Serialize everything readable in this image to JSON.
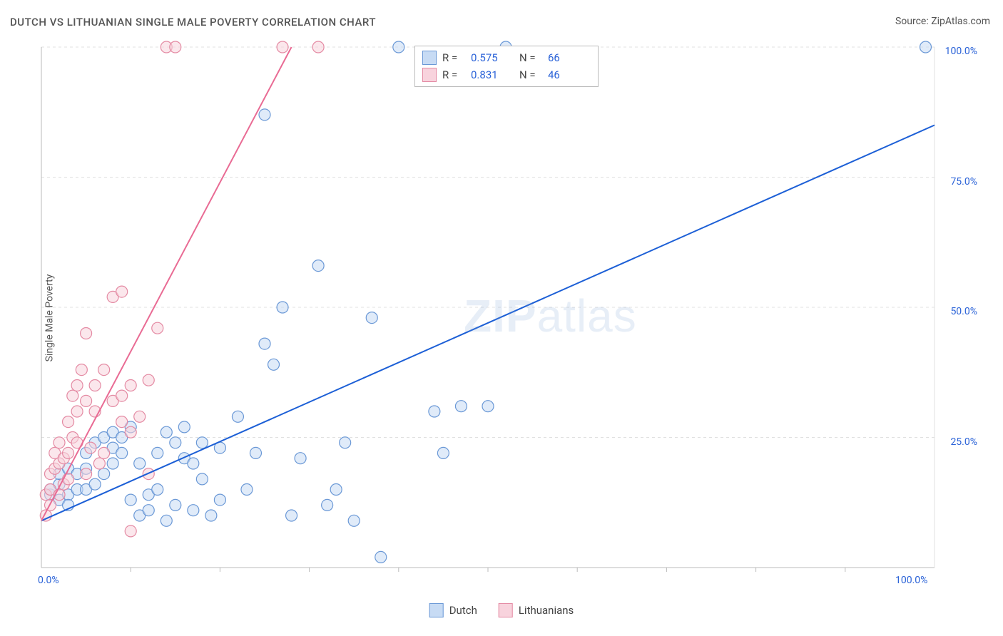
{
  "meta": {
    "title": "DUTCH VS LITHUANIAN SINGLE MALE POVERTY CORRELATION CHART",
    "source_label": "Source: ",
    "source_name": "ZipAtlas.com",
    "y_axis_label": "Single Male Poverty",
    "watermark": "ZIPatlas"
  },
  "colors": {
    "background": "#ffffff",
    "grid": "#e0e0e0",
    "axis": "#bbbbbb",
    "text": "#555555",
    "tick_text": "#2b63d8",
    "dutch_stroke": "#6a98d6",
    "dutch_fill": "#c7dbf4",
    "dutch_line": "#1c5fd6",
    "lith_stroke": "#e48aa3",
    "lith_fill": "#f8d3dd",
    "lith_line": "#e96b94"
  },
  "axes": {
    "xlim": [
      0,
      100
    ],
    "ylim": [
      0,
      100
    ],
    "x_ticks": [
      {
        "v": 0,
        "label": "0.0%"
      },
      {
        "v": 100,
        "label": "100.0%"
      }
    ],
    "x_minor_lines": [
      10,
      20,
      30,
      40,
      50,
      60,
      70,
      80,
      90
    ],
    "y_ticks": [
      {
        "v": 25,
        "label": "25.0%"
      },
      {
        "v": 50,
        "label": "50.0%"
      },
      {
        "v": 75,
        "label": "75.0%"
      },
      {
        "v": 100,
        "label": "100.0%"
      }
    ]
  },
  "legend_stats": {
    "rows": [
      {
        "color_key": "dutch",
        "r_label": "R =",
        "r": "0.575",
        "n_label": "N =",
        "n": "66"
      },
      {
        "color_key": "lith",
        "r_label": "R =",
        "r": "0.831",
        "n_label": "N =",
        "n": "46"
      }
    ]
  },
  "legend_series": {
    "items": [
      {
        "color_key": "dutch",
        "label": "Dutch"
      },
      {
        "color_key": "lith",
        "label": "Lithuanians"
      }
    ]
  },
  "chart": {
    "type": "scatter",
    "marker_radius": 8,
    "marker_stroke_width": 1.2,
    "trend_line_width": 2,
    "series": [
      {
        "name": "Dutch",
        "color_key": "dutch",
        "trend": {
          "x1": 0,
          "y1": 9,
          "x2": 100,
          "y2": 85
        },
        "points": [
          [
            1,
            14
          ],
          [
            1,
            15
          ],
          [
            2,
            13
          ],
          [
            2,
            16
          ],
          [
            2,
            18
          ],
          [
            3,
            14
          ],
          [
            3,
            19
          ],
          [
            3,
            12
          ],
          [
            4,
            15
          ],
          [
            4,
            18
          ],
          [
            5,
            15
          ],
          [
            5,
            19
          ],
          [
            5,
            22
          ],
          [
            6,
            16
          ],
          [
            6,
            24
          ],
          [
            7,
            18
          ],
          [
            7,
            25
          ],
          [
            8,
            20
          ],
          [
            8,
            23
          ],
          [
            8,
            26
          ],
          [
            9,
            22
          ],
          [
            9,
            25
          ],
          [
            10,
            27
          ],
          [
            10,
            13
          ],
          [
            11,
            10
          ],
          [
            11,
            20
          ],
          [
            12,
            14
          ],
          [
            12,
            11
          ],
          [
            13,
            22
          ],
          [
            13,
            15
          ],
          [
            14,
            26
          ],
          [
            14,
            9
          ],
          [
            15,
            24
          ],
          [
            15,
            12
          ],
          [
            16,
            21
          ],
          [
            16,
            27
          ],
          [
            17,
            20
          ],
          [
            17,
            11
          ],
          [
            18,
            17
          ],
          [
            18,
            24
          ],
          [
            19,
            10
          ],
          [
            20,
            23
          ],
          [
            20,
            13
          ],
          [
            22,
            29
          ],
          [
            23,
            15
          ],
          [
            24,
            22
          ],
          [
            25,
            43
          ],
          [
            25,
            87
          ],
          [
            26,
            39
          ],
          [
            27,
            50
          ],
          [
            28,
            10
          ],
          [
            29,
            21
          ],
          [
            31,
            58
          ],
          [
            32,
            12
          ],
          [
            33,
            15
          ],
          [
            34,
            24
          ],
          [
            35,
            9
          ],
          [
            37,
            48
          ],
          [
            38,
            2
          ],
          [
            44,
            30
          ],
          [
            45,
            22
          ],
          [
            47,
            31
          ],
          [
            50,
            31
          ],
          [
            52,
            100
          ],
          [
            40,
            100
          ],
          [
            99,
            100
          ]
        ]
      },
      {
        "name": "Lithuanians",
        "color_key": "lith",
        "trend": {
          "x1": 0,
          "y1": 9,
          "x2": 28,
          "y2": 100
        },
        "points": [
          [
            0.5,
            10
          ],
          [
            0.5,
            14
          ],
          [
            1,
            12
          ],
          [
            1,
            15
          ],
          [
            1,
            18
          ],
          [
            1.5,
            19
          ],
          [
            1.5,
            22
          ],
          [
            2,
            14
          ],
          [
            2,
            20
          ],
          [
            2,
            24
          ],
          [
            2.5,
            16
          ],
          [
            2.5,
            21
          ],
          [
            3,
            22
          ],
          [
            3,
            17
          ],
          [
            3,
            28
          ],
          [
            3.5,
            33
          ],
          [
            3.5,
            25
          ],
          [
            4,
            30
          ],
          [
            4,
            35
          ],
          [
            4,
            24
          ],
          [
            4.5,
            38
          ],
          [
            5,
            18
          ],
          [
            5,
            45
          ],
          [
            5,
            32
          ],
          [
            5.5,
            23
          ],
          [
            6,
            35
          ],
          [
            6,
            30
          ],
          [
            6.5,
            20
          ],
          [
            7,
            38
          ],
          [
            7,
            22
          ],
          [
            8,
            32
          ],
          [
            8,
            52
          ],
          [
            9,
            33
          ],
          [
            9,
            28
          ],
          [
            9,
            53
          ],
          [
            10,
            35
          ],
          [
            10,
            26
          ],
          [
            10,
            7
          ],
          [
            11,
            29
          ],
          [
            12,
            36
          ],
          [
            12,
            18
          ],
          [
            13,
            46
          ],
          [
            14,
            100
          ],
          [
            15,
            100
          ],
          [
            27,
            100
          ],
          [
            31,
            100
          ]
        ]
      }
    ]
  }
}
